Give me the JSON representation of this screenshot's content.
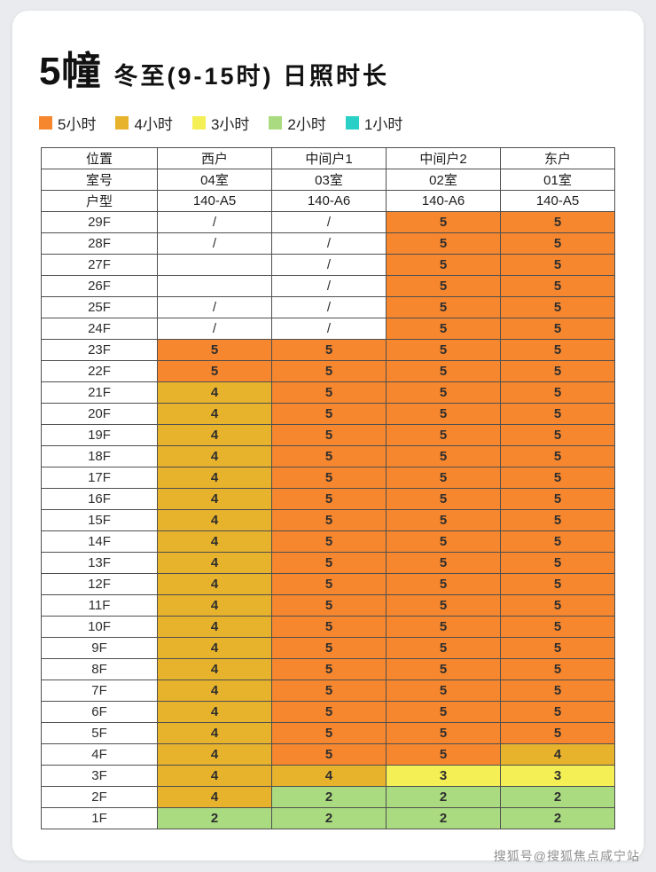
{
  "watermark": "搜狐号@搜狐焦点咸宁站",
  "chart_data": {
    "type": "heatmap",
    "title_building": "5幢",
    "title": "冬至(9-15时) 日照时长",
    "value_unit": "小时",
    "legend": [
      {
        "label": "5小时",
        "value": "5",
        "color": "#f6872e"
      },
      {
        "label": "4小时",
        "value": "4",
        "color": "#e7b22c"
      },
      {
        "label": "3小时",
        "value": "3",
        "color": "#f3ef55"
      },
      {
        "label": "2小时",
        "value": "2",
        "color": "#aadb80"
      },
      {
        "label": "1小时",
        "value": "1",
        "color": "#2ad0c5"
      }
    ],
    "color_map": {
      "5": "#f6872e",
      "4": "#e7b22c",
      "3": "#f3ef55",
      "2": "#aadb80",
      "1": "#2ad0c5"
    },
    "corner_labels": {
      "position": "位置",
      "room": "室号",
      "unit": "户型"
    },
    "columns": [
      "西户",
      "中间户1",
      "中间户2",
      "东户"
    ],
    "rooms": [
      "04室",
      "03室",
      "02室",
      "01室"
    ],
    "units": [
      "140-A5",
      "140-A6",
      "140-A6",
      "140-A5"
    ],
    "floors": [
      "29F",
      "28F",
      "27F",
      "26F",
      "25F",
      "24F",
      "23F",
      "22F",
      "21F",
      "20F",
      "19F",
      "18F",
      "17F",
      "16F",
      "15F",
      "14F",
      "13F",
      "12F",
      "11F",
      "10F",
      "9F",
      "8F",
      "7F",
      "6F",
      "5F",
      "4F",
      "3F",
      "2F",
      "1F"
    ],
    "values": [
      [
        "/",
        "/",
        "5",
        "5"
      ],
      [
        "/",
        "/",
        "5",
        "5"
      ],
      [
        "",
        "/",
        "5",
        "5"
      ],
      [
        "",
        "/",
        "5",
        "5"
      ],
      [
        "/",
        "/",
        "5",
        "5"
      ],
      [
        "/",
        "/",
        "5",
        "5"
      ],
      [
        "5",
        "5",
        "5",
        "5"
      ],
      [
        "5",
        "5",
        "5",
        "5"
      ],
      [
        "4",
        "5",
        "5",
        "5"
      ],
      [
        "4",
        "5",
        "5",
        "5"
      ],
      [
        "4",
        "5",
        "5",
        "5"
      ],
      [
        "4",
        "5",
        "5",
        "5"
      ],
      [
        "4",
        "5",
        "5",
        "5"
      ],
      [
        "4",
        "5",
        "5",
        "5"
      ],
      [
        "4",
        "5",
        "5",
        "5"
      ],
      [
        "4",
        "5",
        "5",
        "5"
      ],
      [
        "4",
        "5",
        "5",
        "5"
      ],
      [
        "4",
        "5",
        "5",
        "5"
      ],
      [
        "4",
        "5",
        "5",
        "5"
      ],
      [
        "4",
        "5",
        "5",
        "5"
      ],
      [
        "4",
        "5",
        "5",
        "5"
      ],
      [
        "4",
        "5",
        "5",
        "5"
      ],
      [
        "4",
        "5",
        "5",
        "5"
      ],
      [
        "4",
        "5",
        "5",
        "5"
      ],
      [
        "4",
        "5",
        "5",
        "5"
      ],
      [
        "4",
        "5",
        "5",
        "4"
      ],
      [
        "4",
        "4",
        "3",
        "3"
      ],
      [
        "4",
        "2",
        "2",
        "2"
      ],
      [
        "2",
        "2",
        "2",
        "2"
      ]
    ]
  }
}
